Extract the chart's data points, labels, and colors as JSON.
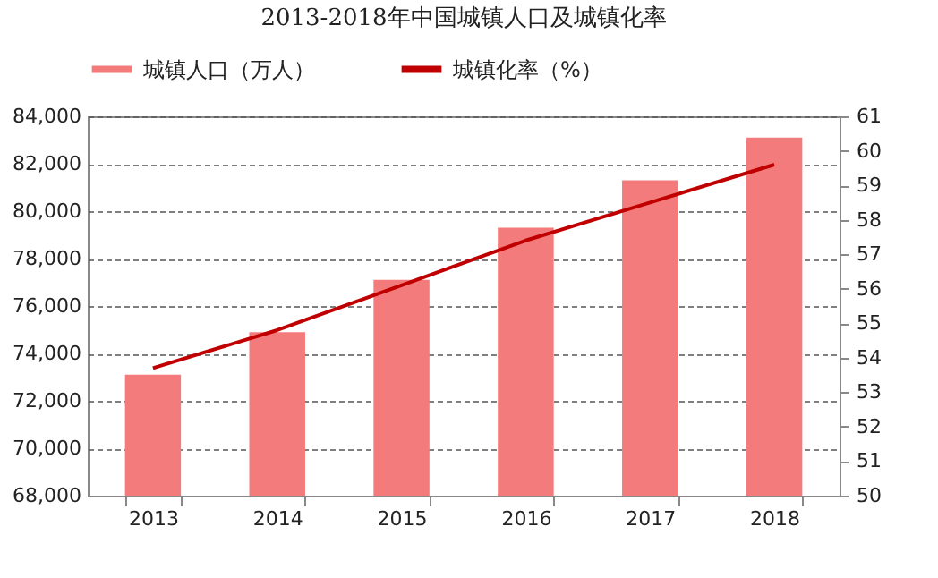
{
  "chart_data": {
    "type": "bar",
    "title": "2013-2018年中国城镇人口及城镇化率",
    "categories": [
      "2013",
      "2014",
      "2015",
      "2016",
      "2017",
      "2018"
    ],
    "series": [
      {
        "name": "城镇人口（万人）",
        "color": "#f47b7b",
        "values": [
          73100,
          74900,
          77100,
          79300,
          81300,
          83100
        ]
      },
      {
        "name": "城镇化率（%）",
        "type": "line",
        "axis": "y2",
        "color": "#c00000",
        "values": [
          53.7,
          54.8,
          56.1,
          57.4,
          58.5,
          59.6
        ]
      }
    ],
    "ylim": [
      68000,
      84000
    ],
    "yticks": [
      {
        "value": 68000,
        "label": "68,000"
      },
      {
        "value": 70000,
        "label": "70,000"
      },
      {
        "value": 72000,
        "label": "72,000"
      },
      {
        "value": 74000,
        "label": "74,000"
      },
      {
        "value": 76000,
        "label": "76,000"
      },
      {
        "value": 78000,
        "label": "78,000"
      },
      {
        "value": 80000,
        "label": "80,000"
      },
      {
        "value": 82000,
        "label": "82,000"
      },
      {
        "value": 84000,
        "label": "84,000"
      }
    ],
    "y2lim": [
      50,
      61
    ],
    "y2ticks": [
      50,
      51,
      52,
      53,
      54,
      55,
      56,
      57,
      58,
      59,
      60,
      61
    ],
    "grid": "y",
    "legend": "top",
    "marker": "none",
    "line_style": "solid"
  }
}
